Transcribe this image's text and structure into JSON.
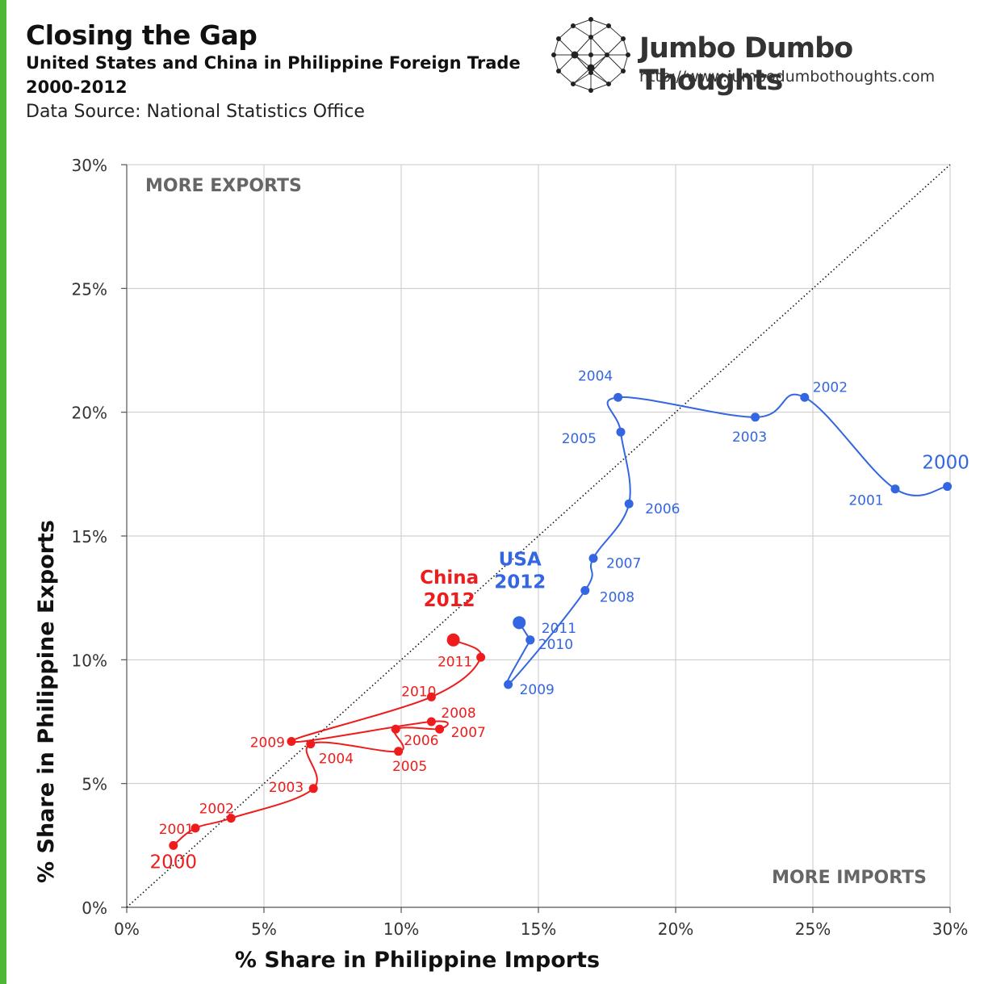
{
  "header": {
    "title": "Closing the Gap",
    "subtitle_line1": "United States and China in Philippine Foreign Trade",
    "subtitle_line2": "2000-2012",
    "source": "Data Source: National Statistics Office"
  },
  "brand": {
    "name": "Jumbo Dumbo Thoughts",
    "url": "http://www.jumbodumbothoughts.com",
    "logo_icon": "network-dots-logo-icon"
  },
  "colors": {
    "usa": "#3366e0",
    "china": "#ee1c1c",
    "accent_bar": "#4cb835",
    "corner_text": "#666666"
  },
  "chart_data": {
    "type": "scatter",
    "xlabel": "% Share in Philippine Imports",
    "ylabel": "% Share in Philippine Exports",
    "xlim": [
      0,
      30
    ],
    "ylim": [
      0,
      30
    ],
    "xticks": [
      "0%",
      "5%",
      "10%",
      "15%",
      "20%",
      "25%",
      "30%"
    ],
    "yticks": [
      "0%",
      "5%",
      "10%",
      "15%",
      "20%",
      "25%",
      "30%"
    ],
    "grid": true,
    "reference_line": "y = x (dotted)",
    "corner_labels": {
      "top_left": "MORE EXPORTS",
      "bottom_right": "MORE IMPORTS"
    },
    "series": [
      {
        "name": "USA",
        "color": "#3366e0",
        "end_label": [
          "USA",
          "2012"
        ],
        "points": [
          {
            "year": "2000",
            "x": 29.9,
            "y": 17.0
          },
          {
            "year": "2001",
            "x": 28.0,
            "y": 16.9
          },
          {
            "year": "2002",
            "x": 24.7,
            "y": 20.6
          },
          {
            "year": "2003",
            "x": 22.9,
            "y": 19.8
          },
          {
            "year": "2004",
            "x": 17.9,
            "y": 20.6
          },
          {
            "year": "2005",
            "x": 18.0,
            "y": 19.2
          },
          {
            "year": "2006",
            "x": 18.3,
            "y": 16.3
          },
          {
            "year": "2007",
            "x": 17.0,
            "y": 14.1
          },
          {
            "year": "2008",
            "x": 16.7,
            "y": 12.8
          },
          {
            "year": "2009",
            "x": 13.9,
            "y": 9.0
          },
          {
            "year": "2010",
            "x": 14.7,
            "y": 10.8
          },
          {
            "year": "2011",
            "x": 14.7,
            "y": 10.8
          },
          {
            "year": "2012",
            "x": 14.3,
            "y": 11.5
          }
        ]
      },
      {
        "name": "China",
        "color": "#ee1c1c",
        "end_label": [
          "China",
          "2012"
        ],
        "points": [
          {
            "year": "2000",
            "x": 1.7,
            "y": 2.5
          },
          {
            "year": "2001",
            "x": 2.5,
            "y": 3.2
          },
          {
            "year": "2002",
            "x": 3.8,
            "y": 3.6
          },
          {
            "year": "2003",
            "x": 6.8,
            "y": 4.8
          },
          {
            "year": "2004",
            "x": 6.7,
            "y": 6.6
          },
          {
            "year": "2005",
            "x": 9.9,
            "y": 6.3
          },
          {
            "year": "2006",
            "x": 9.8,
            "y": 7.2
          },
          {
            "year": "2007",
            "x": 11.4,
            "y": 7.2
          },
          {
            "year": "2008",
            "x": 11.1,
            "y": 7.5
          },
          {
            "year": "2009",
            "x": 6.0,
            "y": 6.7
          },
          {
            "year": "2010",
            "x": 11.1,
            "y": 8.5
          },
          {
            "year": "2011",
            "x": 12.9,
            "y": 10.1
          },
          {
            "year": "2012",
            "x": 11.9,
            "y": 10.8
          }
        ]
      }
    ]
  }
}
